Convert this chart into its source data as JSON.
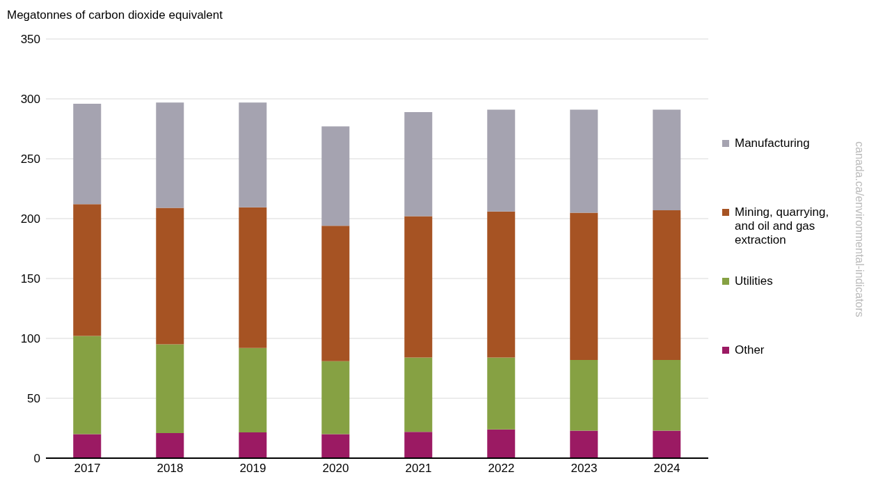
{
  "chart_data": {
    "type": "bar",
    "ylabel": "Megatonnes of carbon dioxide equivalent",
    "categories": [
      "2017",
      "2018",
      "2019",
      "2020",
      "2021",
      "2022",
      "2023",
      "2024"
    ],
    "series": [
      {
        "name": "Other",
        "color": "#9b1a63",
        "values": [
          20,
          21,
          21.5,
          20,
          22,
          24,
          23,
          23
        ]
      },
      {
        "name": "Utilities",
        "color": "#86a143",
        "values": [
          82,
          74,
          70.5,
          61,
          62,
          60,
          59,
          59
        ]
      },
      {
        "name": "Mining, quarrying, and oil and gas extraction",
        "color": "#a65323",
        "values": [
          110,
          114,
          117.5,
          113,
          118,
          122,
          123,
          125
        ]
      },
      {
        "name": "Manufacturing",
        "color": "#a5a3b0",
        "values": [
          84,
          88,
          87.5,
          83,
          87,
          85,
          86,
          84
        ]
      }
    ],
    "stacked": true,
    "ylim": [
      0,
      350
    ],
    "yticks": [
      0,
      50,
      100,
      150,
      200,
      250,
      300,
      350
    ],
    "grid": "y",
    "legend": "right",
    "annotations": [
      "canada.ca/environmental-indicators"
    ]
  }
}
